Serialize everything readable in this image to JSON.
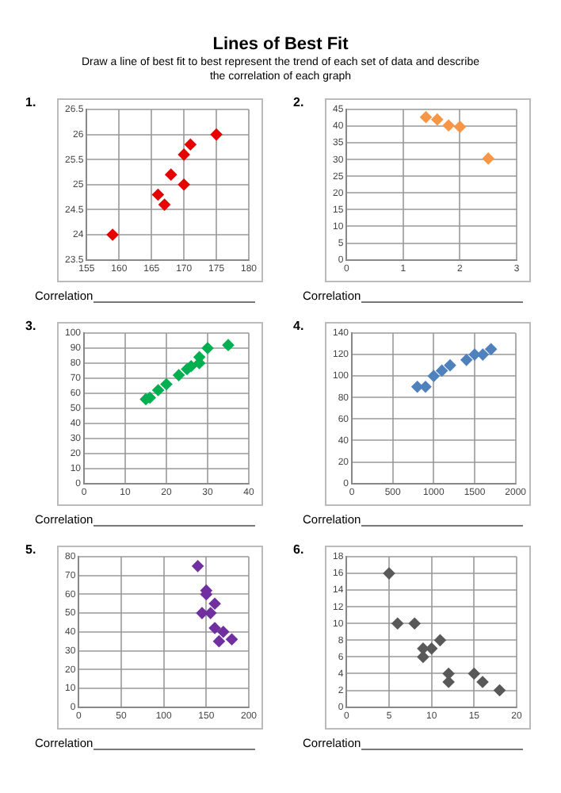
{
  "chart_data": [
    {
      "type": "scatter",
      "title": "Lines of Best Fit",
      "subtitle": "Draw a line of best fit to best represent the trend of each set of data and describe the correlation of each graph",
      "annotations": [
        "1.",
        "Correlation"
      ],
      "marker": "diamond",
      "grid": true,
      "xlim": [
        155,
        180
      ],
      "xticks": [
        155,
        160,
        165,
        170,
        175,
        180
      ],
      "ylim": [
        23.5,
        26.5
      ],
      "yticks": [
        23.5,
        24,
        24.5,
        25,
        25.5,
        26,
        26.5
      ],
      "series": [
        {
          "color": "#e60000",
          "x": [
            159,
            166,
            167,
            168,
            170,
            170,
            171,
            175
          ],
          "values": [
            24,
            24.8,
            24.6,
            25.2,
            25,
            25.6,
            25.8,
            26
          ]
        }
      ]
    },
    {
      "type": "scatter",
      "annotations": [
        "2.",
        "Correlation"
      ],
      "marker": "diamond",
      "grid": true,
      "xlim": [
        0,
        3
      ],
      "xticks": [
        0,
        1,
        2,
        3
      ],
      "ylim": [
        0,
        45
      ],
      "yticks": [
        0,
        5,
        10,
        15,
        20,
        25,
        30,
        35,
        40,
        45
      ],
      "series": [
        {
          "color": "#f79646",
          "x": [
            1.4,
            1.6,
            1.8,
            2,
            2.5
          ],
          "values": [
            42.7,
            42,
            40.2,
            39.8,
            30.3
          ]
        }
      ]
    },
    {
      "type": "scatter",
      "annotations": [
        "3.",
        "Correlation"
      ],
      "marker": "diamond",
      "grid": true,
      "xlim": [
        0,
        40
      ],
      "xticks": [
        0,
        10,
        20,
        30,
        40
      ],
      "ylim": [
        0,
        100
      ],
      "yticks": [
        0,
        10,
        20,
        30,
        40,
        50,
        60,
        70,
        80,
        90,
        100
      ],
      "series": [
        {
          "color": "#00b050",
          "x": [
            15,
            16,
            18,
            20,
            23,
            25,
            26,
            28,
            28,
            30,
            35
          ],
          "values": [
            56,
            57,
            62,
            66,
            72,
            76,
            78,
            80,
            84,
            90,
            92
          ]
        }
      ]
    },
    {
      "type": "scatter",
      "annotations": [
        "4.",
        "Correlation"
      ],
      "marker": "diamond",
      "grid": true,
      "xlim": [
        0,
        2000
      ],
      "xticks": [
        0,
        500,
        1000,
        1500,
        2000
      ],
      "ylim": [
        0,
        140
      ],
      "yticks": [
        0,
        20,
        40,
        60,
        80,
        100,
        120,
        140
      ],
      "series": [
        {
          "color": "#4f81bd",
          "x": [
            800,
            900,
            1000,
            1100,
            1200,
            1400,
            1500,
            1600,
            1700
          ],
          "values": [
            90,
            90,
            100,
            105,
            110,
            115,
            120,
            120,
            125
          ]
        }
      ]
    },
    {
      "type": "scatter",
      "annotations": [
        "5.",
        "Correlation"
      ],
      "marker": "diamond",
      "grid": true,
      "xlim": [
        0,
        200
      ],
      "xticks": [
        0,
        50,
        100,
        150,
        200
      ],
      "ylim": [
        0,
        80
      ],
      "yticks": [
        0,
        10,
        20,
        30,
        40,
        50,
        60,
        70,
        80
      ],
      "series": [
        {
          "color": "#7030a0",
          "x": [
            140,
            150,
            150,
            145,
            155,
            160,
            160,
            170,
            165,
            180
          ],
          "values": [
            75,
            62,
            60,
            50,
            50,
            55,
            42,
            40,
            35,
            36
          ]
        }
      ]
    },
    {
      "type": "scatter",
      "annotations": [
        "6.",
        "Correlation"
      ],
      "marker": "diamond",
      "grid": true,
      "xlim": [
        0,
        20
      ],
      "xticks": [
        0,
        5,
        10,
        15,
        20
      ],
      "ylim": [
        0,
        18
      ],
      "yticks": [
        0,
        2,
        4,
        6,
        8,
        10,
        12,
        14,
        16,
        18
      ],
      "series": [
        {
          "color": "#595959",
          "x": [
            5,
            6,
            8,
            9,
            10,
            9,
            11,
            12,
            12,
            15,
            16,
            18
          ],
          "values": [
            16,
            10,
            10,
            7,
            7,
            6,
            8,
            4,
            3,
            4,
            3,
            2
          ]
        }
      ]
    }
  ]
}
